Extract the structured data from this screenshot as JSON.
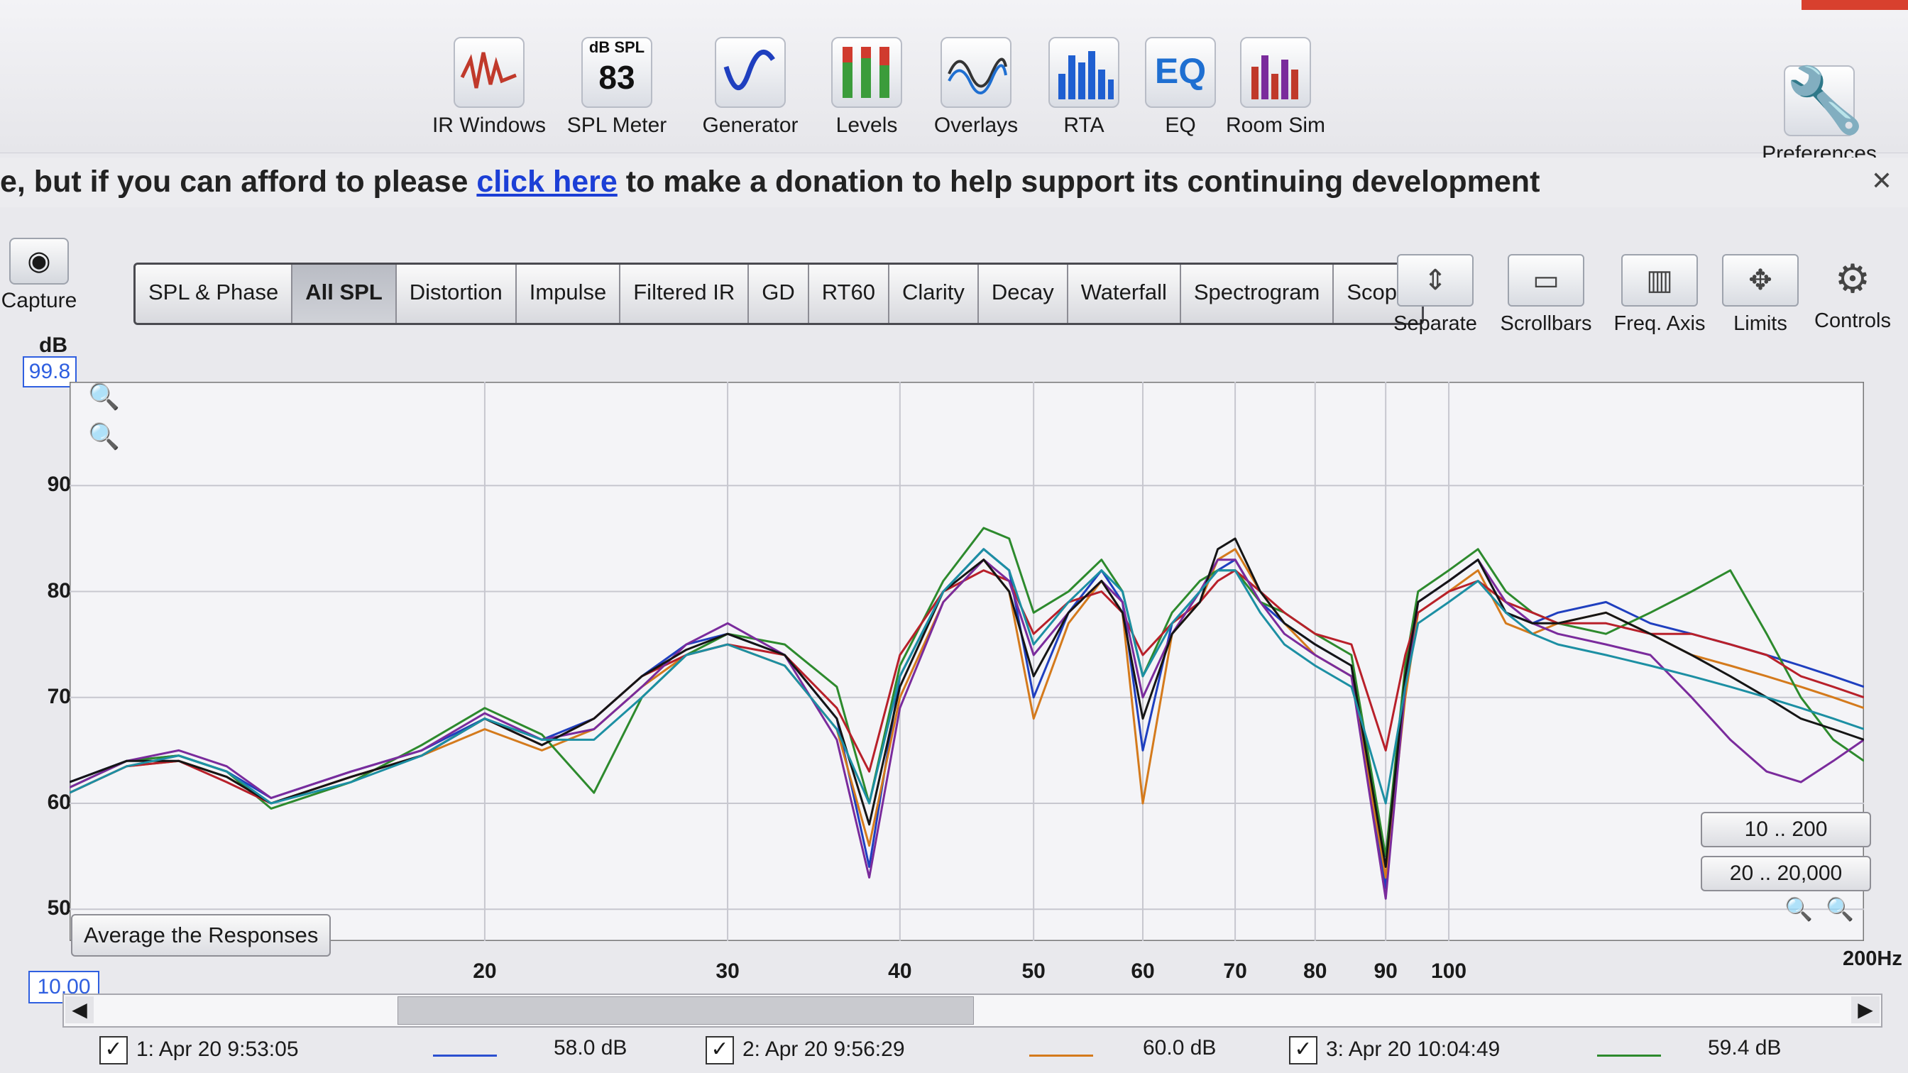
{
  "toolbar": {
    "buttons": [
      {
        "label": "IR Windows",
        "icon": "ir-windows-icon"
      },
      {
        "label": "SPL Meter",
        "icon": "spl-meter-icon",
        "unit": "dB SPL",
        "value": "83"
      },
      {
        "label": "Generator",
        "icon": "generator-icon"
      },
      {
        "label": "Levels",
        "icon": "levels-icon"
      },
      {
        "label": "Overlays",
        "icon": "overlays-icon"
      },
      {
        "label": "RTA",
        "icon": "rta-icon"
      },
      {
        "label": "EQ",
        "icon": "eq-icon",
        "glyph": "EQ"
      },
      {
        "label": "Room Sim",
        "icon": "room-sim-icon"
      }
    ],
    "preferences": "Preferences"
  },
  "banner": {
    "prefix": "e, but if you can afford to please ",
    "link": "click here",
    "suffix": " to make a donation to help support its continuing development"
  },
  "capture": {
    "label": "Capture"
  },
  "tabs": [
    {
      "label": "SPL & Phase",
      "active": false
    },
    {
      "label": "All SPL",
      "active": true
    },
    {
      "label": "Distortion",
      "active": false
    },
    {
      "label": "Impulse",
      "active": false
    },
    {
      "label": "Filtered IR",
      "active": false
    },
    {
      "label": "GD",
      "active": false
    },
    {
      "label": "RT60",
      "active": false
    },
    {
      "label": "Clarity",
      "active": false
    },
    {
      "label": "Decay",
      "active": false
    },
    {
      "label": "Waterfall",
      "active": false
    },
    {
      "label": "Spectrogram",
      "active": false
    },
    {
      "label": "Scope",
      "active": false
    }
  ],
  "right_tools": [
    {
      "label": "Separate",
      "icon": "separate-icon"
    },
    {
      "label": "Scrollbars",
      "icon": "scrollbars-icon"
    },
    {
      "label": "Freq. Axis",
      "icon": "freq-axis-icon"
    },
    {
      "label": "Limits",
      "icon": "limits-icon"
    },
    {
      "label": "Controls",
      "icon": "gear-icon"
    }
  ],
  "plot": {
    "y_unit": "dB",
    "y_top": "99.8",
    "x_start": "10.00",
    "x_end_label": "200Hz",
    "average_button": "Average the Responses",
    "range_buttons": [
      "10 .. 200",
      "20 .. 20,000"
    ]
  },
  "chart_data": {
    "type": "line",
    "x_scale": "log",
    "xlim": [
      10,
      200
    ],
    "ylim": [
      47,
      99.8
    ],
    "ylabel": "dB",
    "y_ticks": [
      50,
      60,
      70,
      80,
      90
    ],
    "x_ticks": [
      20,
      30,
      40,
      50,
      60,
      70,
      80,
      90,
      100
    ],
    "grid": true,
    "x": [
      10,
      11,
      12,
      13,
      14,
      16,
      18,
      20,
      22,
      24,
      26,
      28,
      30,
      33,
      36,
      38,
      40,
      43,
      46,
      48,
      50,
      53,
      56,
      58,
      60,
      63,
      66,
      68,
      70,
      73,
      76,
      80,
      85,
      90,
      93,
      95,
      100,
      105,
      110,
      115,
      120,
      130,
      140,
      150,
      160,
      170,
      180,
      190,
      200
    ],
    "series": [
      {
        "color": "#1f3fbf",
        "values": [
          62,
          64,
          64.5,
          63,
          60.5,
          63,
          65,
          68,
          66,
          68,
          72,
          75,
          76,
          74,
          68,
          54,
          72,
          80,
          84,
          82,
          70,
          78,
          82,
          79,
          65,
          77,
          80,
          82,
          83,
          79,
          77,
          75,
          73,
          52,
          72,
          79,
          81,
          83,
          78,
          77,
          78,
          79,
          77,
          76,
          75,
          74,
          73,
          72,
          71
        ]
      },
      {
        "color": "#d47a1c",
        "values": [
          61,
          63.5,
          64,
          62.5,
          60,
          62.5,
          64.5,
          67,
          65,
          67,
          71,
          74,
          75,
          73,
          67,
          56,
          70,
          79,
          83,
          80,
          68,
          77,
          81,
          78,
          60,
          76,
          79,
          83,
          84,
          80,
          77,
          74,
          72,
          53,
          70,
          78,
          80,
          82,
          77,
          76,
          77,
          78,
          76,
          74,
          73,
          72,
          71,
          70,
          69
        ]
      },
      {
        "color": "#2d8a2d",
        "values": [
          61.5,
          64,
          64.5,
          63,
          59.5,
          62,
          65.5,
          69,
          66.5,
          61,
          70,
          74,
          76,
          75,
          71,
          60,
          73,
          81,
          86,
          85,
          78,
          80,
          83,
          80,
          72,
          78,
          81,
          82,
          82,
          79,
          78,
          76,
          74,
          55,
          73,
          80,
          82,
          84,
          80,
          78,
          77,
          76,
          78,
          80,
          82,
          76,
          70,
          66,
          64
        ]
      },
      {
        "color": "#b8202a",
        "values": [
          61,
          63.5,
          64,
          62,
          60,
          62.5,
          64.5,
          68,
          65.5,
          68,
          72,
          74,
          75,
          74,
          69,
          63,
          74,
          80,
          82,
          81,
          76,
          79,
          80,
          78,
          74,
          77,
          79,
          81,
          82,
          80,
          78,
          76,
          75,
          65,
          74,
          78,
          80,
          81,
          79,
          78,
          77,
          77,
          76,
          76,
          75,
          74,
          72,
          71,
          70
        ]
      },
      {
        "color": "#7a2b9c",
        "values": [
          61.5,
          64,
          65,
          63.5,
          60.5,
          63,
          65,
          68.5,
          66,
          67,
          71,
          75,
          77,
          74,
          66,
          53,
          69,
          79,
          83,
          81,
          74,
          78,
          81,
          79,
          70,
          76,
          80,
          83,
          83,
          79,
          76,
          74,
          72,
          51,
          71,
          79,
          81,
          83,
          79,
          77,
          76,
          75,
          74,
          70,
          66,
          63,
          62,
          64,
          66
        ]
      },
      {
        "color": "#151515",
        "values": [
          62,
          64,
          64,
          62.5,
          60,
          62.5,
          64.5,
          68,
          65.5,
          68,
          72,
          74.5,
          76,
          74,
          68,
          58,
          71,
          80,
          83,
          80,
          72,
          78,
          81,
          78,
          68,
          76,
          79,
          84,
          85,
          80,
          77,
          75,
          73,
          54,
          72,
          79,
          81,
          83,
          78,
          77,
          77,
          78,
          76,
          74,
          72,
          70,
          68,
          67,
          66
        ]
      },
      {
        "color": "#1c8fa3",
        "values": [
          61,
          63.5,
          64.5,
          63,
          60,
          62,
          64.5,
          68,
          66,
          66,
          70,
          74,
          75,
          73,
          67,
          60,
          72,
          80,
          84,
          82,
          75,
          79,
          82,
          80,
          72,
          77,
          80,
          82,
          82,
          78,
          75,
          73,
          71,
          60,
          71,
          77,
          79,
          81,
          78,
          76,
          75,
          74,
          73,
          72,
          71,
          70,
          69,
          68,
          67
        ]
      }
    ]
  },
  "legend": [
    {
      "label": "1: Apr 20 9:53:05",
      "level": "58.0 dB",
      "color": "#2b4fd0",
      "checked": true
    },
    {
      "label": "2: Apr 20 9:56:29",
      "level": "60.0 dB",
      "color": "#d47a1c",
      "checked": true
    },
    {
      "label": "3: Apr 20 10:04:49",
      "level": "59.4 dB",
      "color": "#2d8a2d",
      "checked": true
    }
  ],
  "icons": {
    "close": "close-icon",
    "zoom": "zoom-icon",
    "scroll_left": "chevron-left-icon",
    "scroll_right": "chevron-right-icon",
    "check": "checkmark-icon"
  }
}
